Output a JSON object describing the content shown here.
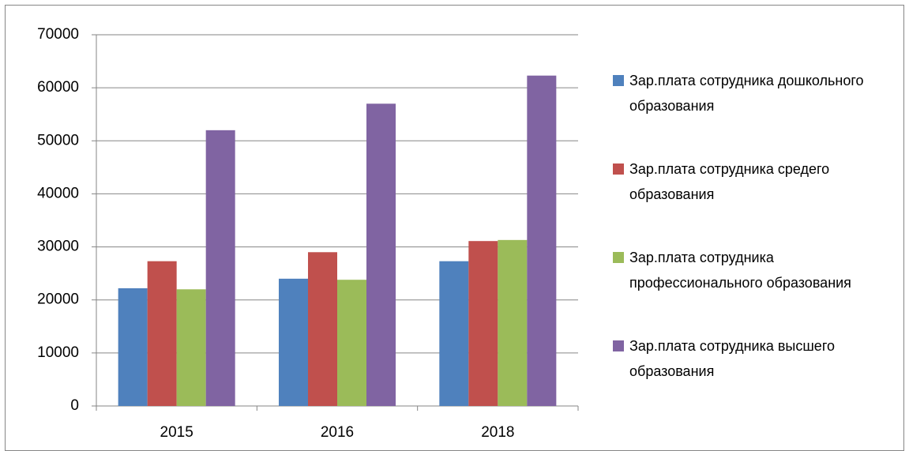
{
  "chart_data": {
    "type": "bar",
    "categories": [
      "2015",
      "2016",
      "2018"
    ],
    "series": [
      {
        "name": "Зар.плата сотрудника дошкольного образования",
        "color": "#4f81bd",
        "values": [
          22200,
          24000,
          27300
        ]
      },
      {
        "name": "Зар.плата сотрудника средего образования",
        "color": "#c0504d",
        "values": [
          27300,
          29000,
          31100
        ]
      },
      {
        "name": "Зар.плата сотрудника профессионального образования",
        "color": "#9bbb59",
        "values": [
          22000,
          23800,
          31300
        ]
      },
      {
        "name": "Зар.плата сотрудника высшего образования",
        "color": "#8064a2",
        "values": [
          52000,
          57000,
          62300
        ]
      }
    ],
    "ylim": [
      0,
      70000
    ],
    "yticks": [
      0,
      10000,
      20000,
      30000,
      40000,
      50000,
      60000,
      70000
    ],
    "grid": true,
    "legend": "right"
  }
}
